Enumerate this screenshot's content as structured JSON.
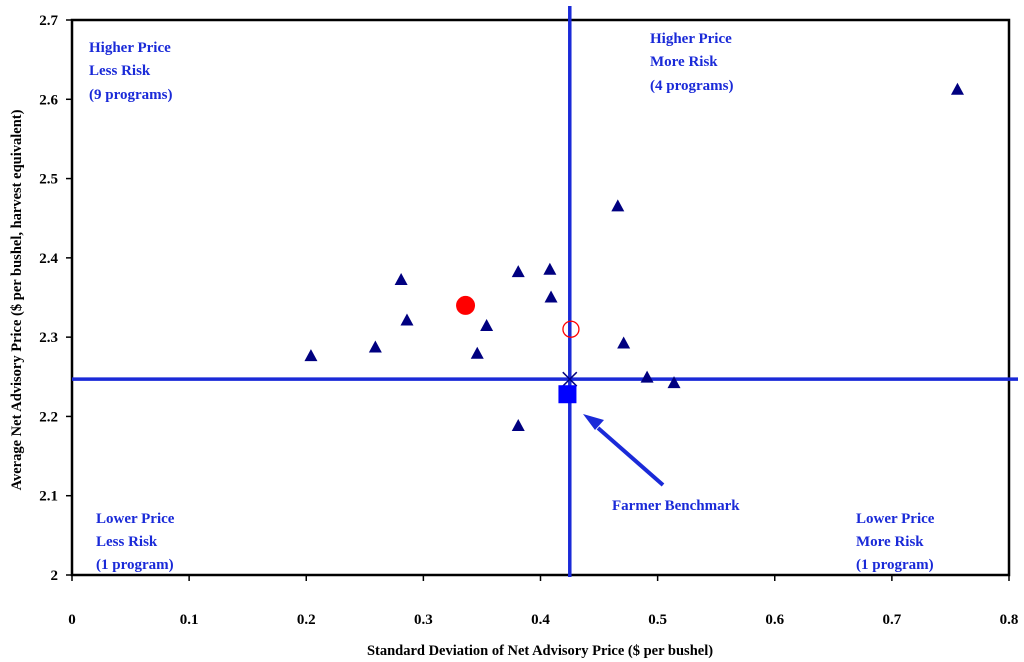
{
  "chart_data": {
    "type": "scatter",
    "xlabel": "Standard Deviation of Net Advisory Price ($ per bushel)",
    "ylabel": "Average Net Advisory Price ($ per bushel, harvest equivalent)",
    "xlim": [
      0,
      0.8
    ],
    "ylim": [
      2.0,
      2.7
    ],
    "x_ticks": [
      "0",
      "0.1",
      "0.2",
      "0.3",
      "0.4",
      "0.5",
      "0.6",
      "0.7",
      "0.8"
    ],
    "y_ticks": [
      "2",
      "2.1",
      "2.2",
      "2.3",
      "2.4",
      "2.5",
      "2.6",
      "2.7"
    ],
    "grid": false,
    "reference_lines": {
      "x": 0.425,
      "y": 2.247
    },
    "series": [
      {
        "marker": "triangle",
        "color": "#000080",
        "points": [
          [
            0.204,
            2.276
          ],
          [
            0.259,
            2.287
          ],
          [
            0.281,
            2.372
          ],
          [
            0.286,
            2.321
          ],
          [
            0.346,
            2.279
          ],
          [
            0.354,
            2.314
          ],
          [
            0.381,
            2.382
          ],
          [
            0.381,
            2.188
          ],
          [
            0.408,
            2.385
          ],
          [
            0.409,
            2.35
          ],
          [
            0.466,
            2.465
          ],
          [
            0.471,
            2.292
          ],
          [
            0.491,
            2.249
          ],
          [
            0.514,
            2.242
          ],
          [
            0.756,
            2.612
          ]
        ]
      },
      {
        "marker": "filled-circle",
        "color": "#ff0000",
        "points": [
          [
            0.336,
            2.34
          ]
        ]
      },
      {
        "marker": "open-circle",
        "color": "#ff0000",
        "points": [
          [
            0.426,
            2.31
          ]
        ]
      },
      {
        "marker": "cross",
        "color": "#000080",
        "points": [
          [
            0.425,
            2.247
          ]
        ]
      },
      {
        "marker": "square",
        "color": "#0000ff",
        "points": [
          [
            0.423,
            2.228
          ]
        ]
      }
    ],
    "quadrant_labels": {
      "top_left": [
        "Higher Price",
        "Less Risk",
        "(9 programs)"
      ],
      "top_right": [
        "Higher Price",
        "More Risk",
        "(4 programs)"
      ],
      "bottom_left": [
        "Lower Price",
        "Less Risk",
        "(1 program)"
      ],
      "bottom_right": [
        "Lower Price",
        "More Risk",
        "(1 program)"
      ]
    },
    "annotation": "Farmer Benchmark"
  },
  "colors": {
    "reference_line": "#1a2ad8",
    "inner_border": "#1a2ad8",
    "text": "#1a2ad8",
    "triangle": "#000080"
  }
}
